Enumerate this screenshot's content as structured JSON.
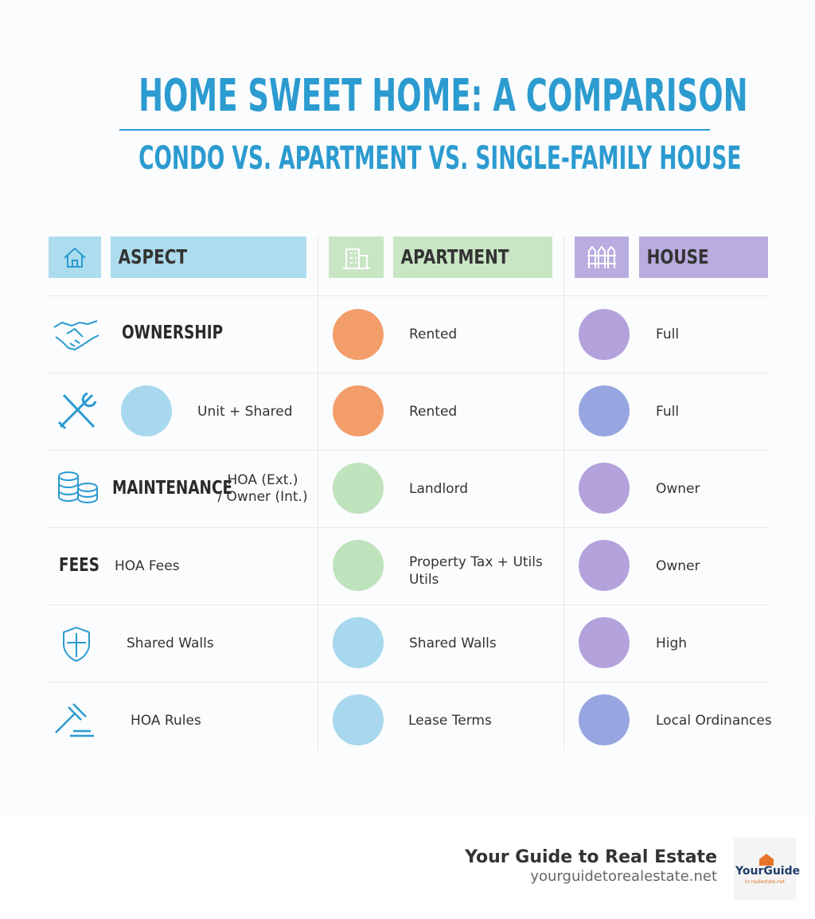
{
  "header": {
    "title": "HOME SWEET HOME: A COMPARISON",
    "subtitle": "CONDO VS. APARTMENT VS. SINGLE-FAMILY HOUSE"
  },
  "table": {
    "columns": [
      "ASPECT",
      "APARTMENT",
      "HOUSE"
    ],
    "rows": [
      {
        "aspect_label": "OWNERSHIP",
        "apartment": "Rented",
        "house": "Full"
      },
      {
        "aspect_text": "Unit + Shared",
        "apartment": "Rented",
        "house": "Full"
      },
      {
        "aspect_label": "MAINTENANCE",
        "aspect_lines": [
          "HOA (Ext.)",
          "/ Owner (Int.)"
        ],
        "apartment": "Landlord",
        "house": "Owner"
      },
      {
        "aspect_label": "FEES",
        "aspect_text": "HOA Fees",
        "apartment_lines": [
          "Property Tax + Utils",
          "Utils"
        ],
        "house": "Owner"
      },
      {
        "aspect_text": "Shared Walls",
        "apartment": "Shared Walls",
        "house": "High"
      },
      {
        "aspect_text": "HOA Rules",
        "apartment": "Lease Terms",
        "house": "Local Ordinances"
      }
    ]
  },
  "footer": {
    "brand": "Your Guide to Real Estate",
    "url": "yourguidetorealestate.net",
    "logo": {
      "name": "YourGuide",
      "tagline": "to realestate.net"
    }
  }
}
